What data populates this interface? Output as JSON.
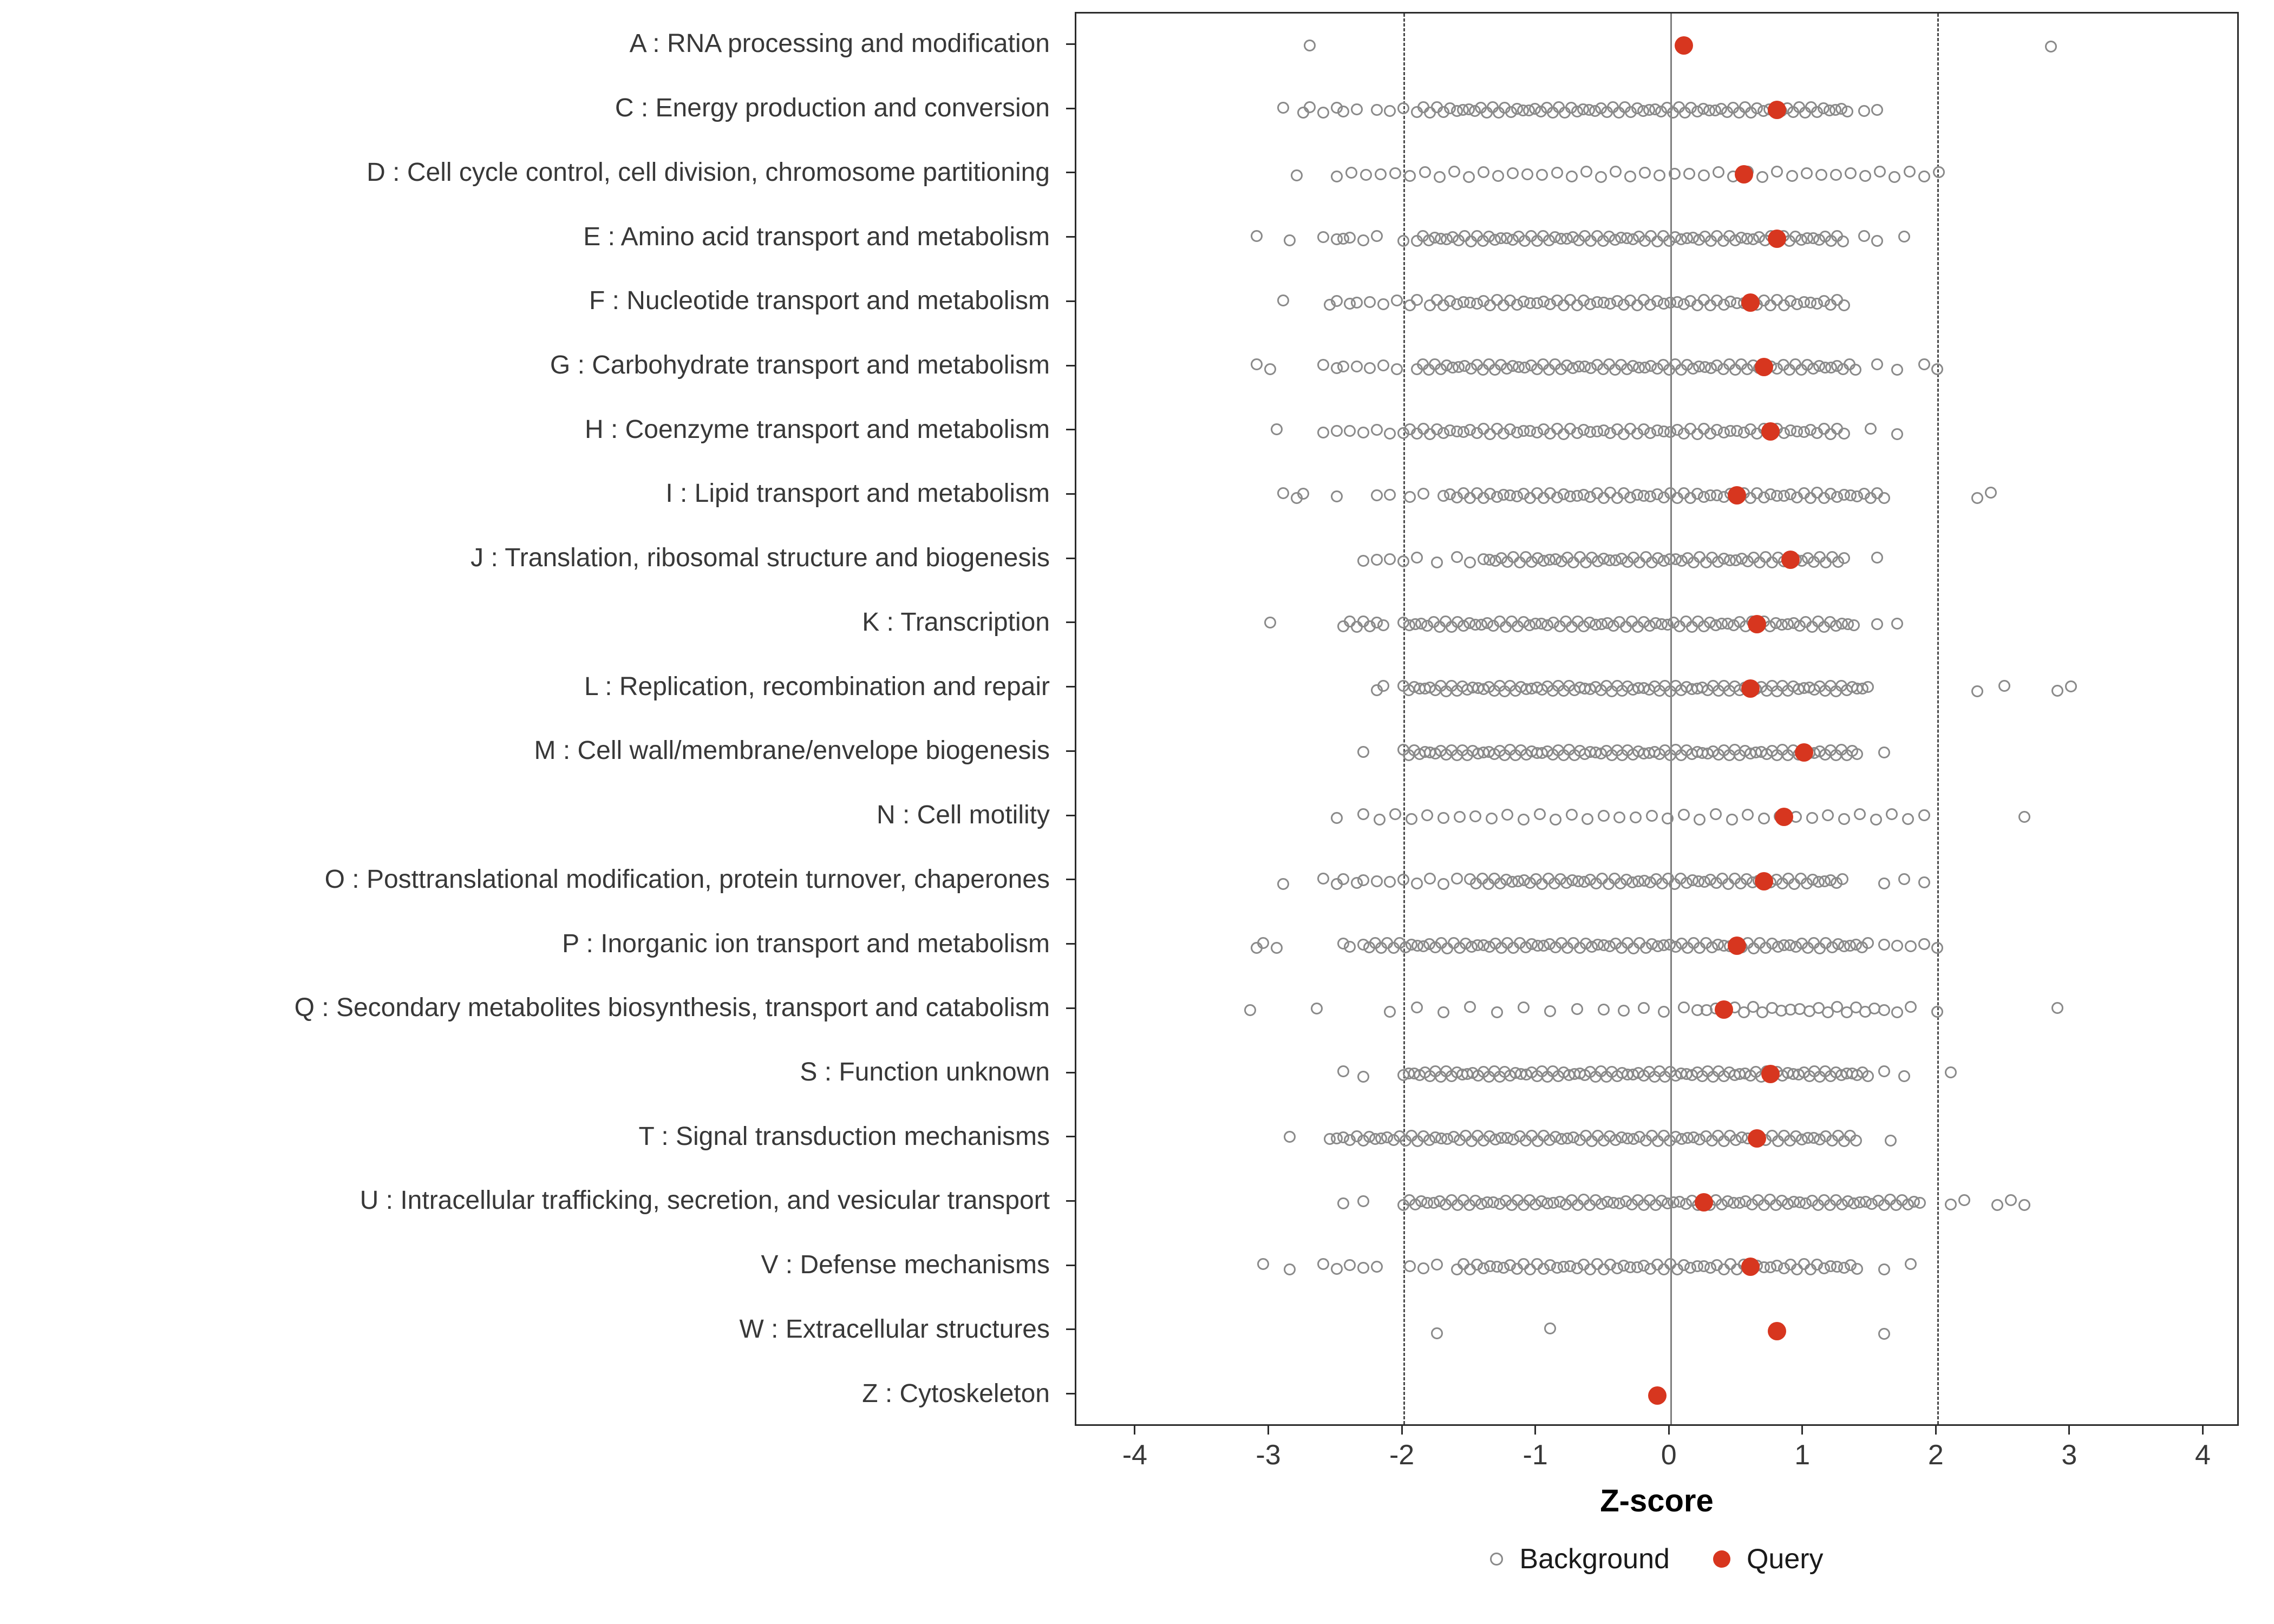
{
  "chart_data": {
    "type": "scatter",
    "title": "",
    "xlabel": "Z-score",
    "ylabel": "",
    "xlim": [
      -4.45,
      4.27
    ],
    "x_ticks": [
      -4,
      -3,
      -2,
      -1,
      0,
      1,
      2,
      3,
      4
    ],
    "x_tick_labels": [
      "-4",
      "-3",
      "-2",
      "-1",
      "0",
      "1",
      "2",
      "3",
      "4"
    ],
    "grid": "off",
    "reference_lines": {
      "solid": [
        0
      ],
      "dashed": [
        -2,
        2
      ]
    },
    "legend_position": "bottom",
    "colors": {
      "background_stroke": "#8A8A8A",
      "query_fill": "#D7361F",
      "dashed_line": "#4A4A4A",
      "zero_line": "#7E7E7E",
      "panel_border": "#2B2B2B",
      "axis_text": "#383838"
    },
    "legend": {
      "entries": [
        {
          "label": "Background",
          "marker": "open-circle"
        },
        {
          "label": "Query",
          "marker": "filled-circle"
        }
      ]
    },
    "categories": [
      {
        "label": "A : RNA processing and modification",
        "query": 0.1,
        "background_segments": [],
        "background_points": [
          -2.7,
          2.85
        ]
      },
      {
        "label": "C : Energy production and conversion",
        "query": 0.8,
        "background_segments": [
          [
            -1.6,
            1.35,
            0.045
          ]
        ],
        "background_points": [
          -2.9,
          -2.75,
          -2.7,
          -2.6,
          -2.5,
          -2.45,
          -2.35,
          -2.2,
          -2.1,
          -2.0,
          -1.9,
          -1.85,
          -1.8,
          -1.75,
          -1.7,
          -1.65,
          1.45,
          1.55
        ]
      },
      {
        "label": "D : Cell cycle control, cell division, chromosome partitioning",
        "query": 0.55,
        "background_segments": [
          [
            -2.5,
            2.1,
            0.11
          ]
        ],
        "background_points": [
          -2.8
        ]
      },
      {
        "label": "E : Amino acid transport and metabolism",
        "query": 0.8,
        "background_segments": [
          [
            -1.9,
            1.3,
            0.045
          ]
        ],
        "background_points": [
          -3.1,
          -2.85,
          -2.6,
          -2.5,
          -2.45,
          -2.4,
          -2.3,
          -2.2,
          -2.0,
          1.45,
          1.55,
          1.75
        ]
      },
      {
        "label": "F : Nucleotide transport and metabolism",
        "query": 0.6,
        "background_segments": [
          [
            -1.8,
            1.3,
            0.05
          ]
        ],
        "background_points": [
          -2.9,
          -2.55,
          -2.5,
          -2.4,
          -2.35,
          -2.25,
          -2.15,
          -2.05,
          -1.95,
          -1.9
        ]
      },
      {
        "label": "G : Carbohydrate transport and metabolism",
        "query": 0.7,
        "background_segments": [
          [
            -1.9,
            1.4,
            0.045
          ]
        ],
        "background_points": [
          -3.1,
          -3.0,
          -2.6,
          -2.5,
          -2.45,
          -2.35,
          -2.25,
          -2.15,
          -2.05,
          1.55,
          1.7,
          1.9,
          2.0
        ]
      },
      {
        "label": "H : Coenzyme transport and metabolism",
        "query": 0.75,
        "background_segments": [
          [
            -2.0,
            1.3,
            0.05
          ]
        ],
        "background_points": [
          -2.95,
          -2.6,
          -2.5,
          -2.4,
          -2.3,
          -2.2,
          -2.1,
          1.5,
          1.7
        ]
      },
      {
        "label": "I : Lipid transport and metabolism",
        "query": 0.5,
        "background_segments": [
          [
            -1.7,
            1.6,
            0.05
          ]
        ],
        "background_points": [
          -2.9,
          -2.8,
          -2.75,
          -2.5,
          -2.2,
          -2.1,
          -1.95,
          -1.85,
          2.3,
          2.4
        ]
      },
      {
        "label": "J : Translation, ribosomal structure and biogenesis",
        "query": 0.9,
        "background_segments": [
          [
            -1.4,
            1.3,
            0.045
          ]
        ],
        "background_points": [
          -2.3,
          -2.2,
          -2.1,
          -2.0,
          -1.9,
          -1.75,
          -1.6,
          -1.5,
          1.55
        ]
      },
      {
        "label": "K : Transcription",
        "query": 0.65,
        "background_segments": [
          [
            -2.0,
            1.4,
            0.045
          ]
        ],
        "background_points": [
          -3.0,
          -2.45,
          -2.4,
          -2.35,
          -2.3,
          -2.25,
          -2.2,
          -2.15,
          1.55,
          1.7
        ]
      },
      {
        "label": "L : Replication, recombination and repair",
        "query": 0.6,
        "background_segments": [
          [
            -2.0,
            1.5,
            0.04
          ]
        ],
        "background_points": [
          -2.2,
          -2.15,
          2.3,
          2.5,
          2.9,
          3.0
        ]
      },
      {
        "label": "M : Cell wall/membrane/envelope biogenesis",
        "query": 1.0,
        "background_segments": [
          [
            -2.0,
            1.4,
            0.04
          ]
        ],
        "background_points": [
          -2.3,
          1.6
        ]
      },
      {
        "label": "N : Cell motility",
        "query": 0.85,
        "background_segments": [
          [
            -2.3,
            2.0,
            0.12
          ]
        ],
        "background_points": [
          -2.5,
          2.65
        ]
      },
      {
        "label": "O : Posttranslational modification, protein turnover, chaperones",
        "query": 0.7,
        "background_segments": [
          [
            -1.5,
            1.3,
            0.045
          ]
        ],
        "background_points": [
          -2.9,
          -2.6,
          -2.5,
          -2.45,
          -2.35,
          -2.3,
          -2.2,
          -2.1,
          -2.0,
          -1.9,
          -1.8,
          -1.7,
          -1.6,
          1.6,
          1.75,
          1.9
        ]
      },
      {
        "label": "P : Inorganic ion transport and metabolism",
        "query": 0.5,
        "background_segments": [
          [
            -2.3,
            1.5,
            0.045
          ]
        ],
        "background_points": [
          -3.1,
          -3.05,
          -2.95,
          -2.45,
          -2.4,
          1.6,
          1.7,
          1.8,
          1.9,
          2.0
        ]
      },
      {
        "label": "Q : Secondary metabolites biosynthesis, transport and catabolism",
        "query": 0.4,
        "background_segments": [
          [
            0.2,
            1.6,
            0.07
          ]
        ],
        "background_points": [
          -3.15,
          -2.65,
          -2.1,
          -1.9,
          -1.7,
          -1.5,
          -1.3,
          -1.1,
          -0.9,
          -0.7,
          -0.5,
          -0.35,
          -0.2,
          -0.05,
          0.1,
          1.7,
          1.8,
          2.0,
          2.9
        ]
      },
      {
        "label": "S : Function unknown",
        "query": 0.75,
        "background_segments": [
          [
            -2.0,
            1.5,
            0.04
          ]
        ],
        "background_points": [
          -2.45,
          -2.3,
          1.6,
          1.75,
          2.1
        ]
      },
      {
        "label": "T : Signal transduction mechanisms",
        "query": 0.65,
        "background_segments": [
          [
            -2.3,
            1.4,
            0.045
          ]
        ],
        "background_points": [
          -2.85,
          -2.55,
          -2.5,
          -2.45,
          -2.4,
          -2.35,
          1.65
        ]
      },
      {
        "label": "U : Intracellular trafficking, secretion, and vesicular transport",
        "query": 0.25,
        "background_segments": [
          [
            -2.0,
            1.9,
            0.045
          ]
        ],
        "background_points": [
          -2.45,
          -2.3,
          2.1,
          2.2,
          2.45,
          2.55,
          2.65
        ]
      },
      {
        "label": "V : Defense mechanisms",
        "query": 0.6,
        "background_segments": [
          [
            -1.6,
            1.4,
            0.05
          ]
        ],
        "background_points": [
          -3.05,
          -2.85,
          -2.6,
          -2.5,
          -2.4,
          -2.3,
          -2.2,
          -1.95,
          -1.85,
          -1.75,
          1.6,
          1.8
        ]
      },
      {
        "label": "W : Extracellular structures",
        "query": 0.8,
        "background_segments": [],
        "background_points": [
          -1.75,
          -0.9,
          1.6
        ]
      },
      {
        "label": "Z : Cytoskeleton",
        "query": -0.1,
        "background_segments": [],
        "background_points": []
      }
    ]
  }
}
